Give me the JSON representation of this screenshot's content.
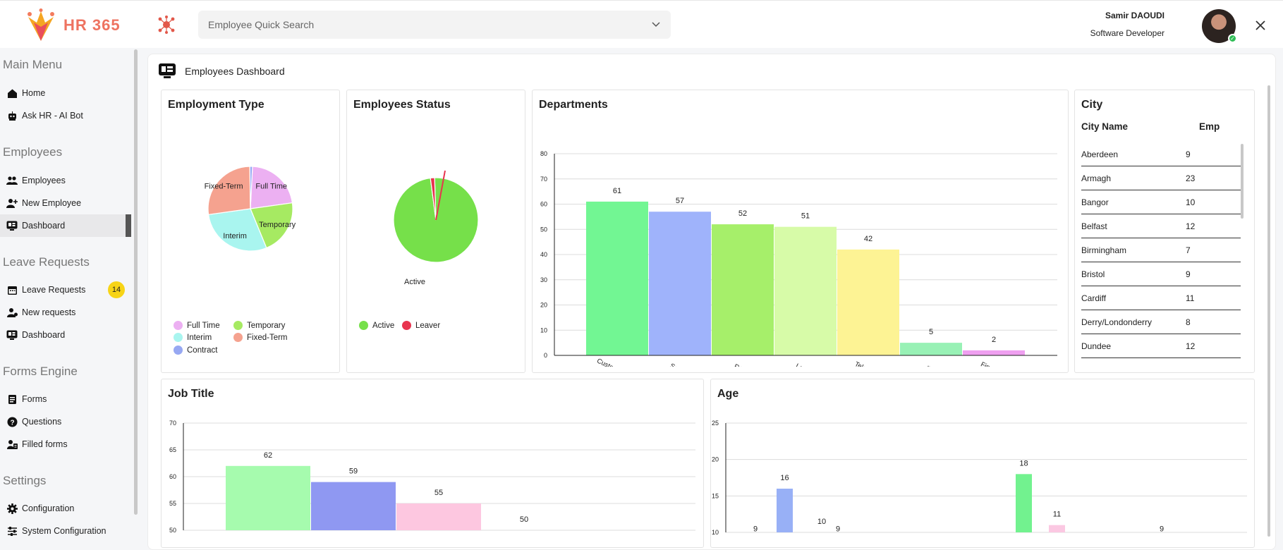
{
  "app": {
    "logo_text": "HR 365",
    "search_placeholder": "Employee Quick Search",
    "user_name": "Samir DAOUDI",
    "user_role": "Software Developer"
  },
  "sidebar": {
    "sections": [
      {
        "title": "Main Menu",
        "items": [
          {
            "label": "Home",
            "icon": "home-icon"
          },
          {
            "label": "Ask HR - AI Bot",
            "icon": "bot-icon"
          }
        ]
      },
      {
        "title": "Employees",
        "items": [
          {
            "label": "Employees",
            "icon": "users-icon"
          },
          {
            "label": "New Employee",
            "icon": "user-plus-icon"
          },
          {
            "label": "Dashboard",
            "icon": "dashboard-icon",
            "active": true
          }
        ]
      },
      {
        "title": "Leave Requests",
        "items": [
          {
            "label": "Leave Requests",
            "icon": "calendar-icon",
            "badge": "14"
          },
          {
            "label": "New requests",
            "icon": "bell-icon"
          },
          {
            "label": "Dashboard",
            "icon": "dashboard-icon"
          }
        ]
      },
      {
        "title": "Forms Engine",
        "items": [
          {
            "label": "Forms",
            "icon": "form-icon"
          },
          {
            "label": "Questions",
            "icon": "question-icon"
          },
          {
            "label": "Filled forms",
            "icon": "filled-form-icon"
          }
        ]
      },
      {
        "title": "Settings",
        "items": [
          {
            "label": "Configuration",
            "icon": "gear-icon"
          },
          {
            "label": "System Configuration",
            "icon": "sliders-icon"
          }
        ]
      }
    ]
  },
  "dashboard": {
    "title": "Employees Dashboard",
    "employment_type": {
      "title": "Employment Type",
      "legend": [
        "Full Time",
        "Temporary",
        "Interim",
        "Fixed-Term",
        "Contract"
      ]
    },
    "employees_status": {
      "title": "Employees Status",
      "legend": [
        "Active",
        "Leaver"
      ]
    },
    "departments": {
      "title": "Departments"
    },
    "city": {
      "title": "City",
      "col_name": "City Name",
      "col_emp": "Emp",
      "rows": [
        {
          "name": "Aberdeen",
          "emp": "9"
        },
        {
          "name": "Armagh",
          "emp": "23"
        },
        {
          "name": "Bangor",
          "emp": "10"
        },
        {
          "name": "Belfast",
          "emp": "12"
        },
        {
          "name": "Birmingham",
          "emp": "7"
        },
        {
          "name": "Bristol",
          "emp": "9"
        },
        {
          "name": "Cardiff",
          "emp": "11"
        },
        {
          "name": "Derry/Londonderry",
          "emp": "8"
        },
        {
          "name": "Dundee",
          "emp": "12"
        }
      ]
    },
    "job_title": {
      "title": "Job Title"
    },
    "age": {
      "title": "Age"
    }
  },
  "colors": {
    "accent": "#ee7360",
    "badge": "#f7d417",
    "active_green": "#76e04a",
    "leaver_red": "#e8344e"
  },
  "chart_data": [
    {
      "id": "employment_type",
      "type": "pie",
      "title": "Employment Type",
      "labels": [
        "Full Time",
        "Temporary",
        "Interim",
        "Fixed-Term",
        "Contract"
      ],
      "values": [
        22,
        21,
        29,
        27,
        1
      ],
      "colors": [
        "#ecb0f2",
        "#a6ea62",
        "#a9f5ef",
        "#f5a28f",
        "#97a8f2"
      ]
    },
    {
      "id": "employees_status",
      "type": "pie",
      "title": "Employees Status",
      "labels": [
        "Active",
        "Leaver"
      ],
      "values": [
        98.4,
        1.6
      ],
      "colors": [
        "#76e04a",
        "#e8344e"
      ]
    },
    {
      "id": "departments",
      "type": "bar",
      "title": "Departments",
      "categories": [
        "Customers ...",
        "Sales",
        "R&D",
        "Legal",
        "Telecom",
        "IT",
        "Finance"
      ],
      "values": [
        61,
        57,
        52,
        51,
        42,
        5,
        2
      ],
      "colors": [
        "#72f693",
        "#9fb3fb",
        "#a6ef6a",
        "#d7fba8",
        "#fdf394",
        "#98f1b5",
        "#ef9ff0"
      ],
      "ylim": [
        0,
        80
      ],
      "yticks": [
        0,
        10,
        20,
        30,
        40,
        50,
        60,
        70,
        80
      ]
    },
    {
      "id": "job_title",
      "type": "bar",
      "title": "Job Title",
      "values": [
        62,
        59,
        55,
        50
      ],
      "colors": [
        "#a6fbae",
        "#8f98f2",
        "#fdc7e0",
        "#72f4a1"
      ],
      "ylim": [
        50,
        70
      ],
      "yticks": [
        50,
        55,
        60,
        65,
        70
      ]
    },
    {
      "id": "age",
      "type": "bar",
      "title": "Age",
      "bars": [
        {
          "label": "9",
          "value": 9,
          "color": "#f0f0f0"
        },
        {
          "label": "16",
          "value": 16,
          "color": "#98b0f6"
        },
        {
          "label": "10",
          "value": 10,
          "color": "#f0f0f0"
        },
        {
          "label": "9",
          "value": 9,
          "color": "#f0f0f0"
        },
        {
          "label": "18",
          "value": 18,
          "color": "#72f28f"
        },
        {
          "label": "11",
          "value": 11,
          "color": "#fbc8e2"
        },
        {
          "label": "9",
          "value": 9,
          "color": "#f0f0f0"
        }
      ],
      "ylim": [
        10,
        25
      ],
      "yticks": [
        10,
        15,
        20,
        25
      ]
    }
  ]
}
